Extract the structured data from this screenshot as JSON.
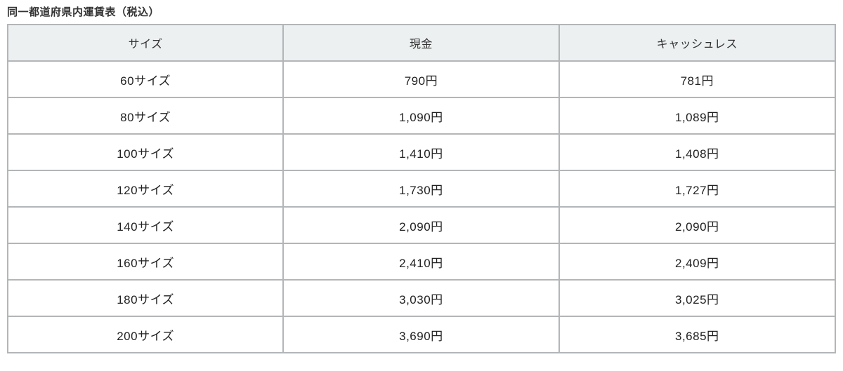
{
  "title": "同一都道府県内運賃表（税込）",
  "chart_data": {
    "type": "table",
    "columns": [
      "サイズ",
      "現金",
      "キャッシュレス"
    ],
    "rows": [
      {
        "size": "60サイズ",
        "cash": "790円",
        "cashless": "781円"
      },
      {
        "size": "80サイズ",
        "cash": "1,090円",
        "cashless": "1,089円"
      },
      {
        "size": "100サイズ",
        "cash": "1,410円",
        "cashless": "1,408円"
      },
      {
        "size": "120サイズ",
        "cash": "1,730円",
        "cashless": "1,727円"
      },
      {
        "size": "140サイズ",
        "cash": "2,090円",
        "cashless": "2,090円"
      },
      {
        "size": "160サイズ",
        "cash": "2,410円",
        "cashless": "2,409円"
      },
      {
        "size": "180サイズ",
        "cash": "3,030円",
        "cashless": "3,025円"
      },
      {
        "size": "200サイズ",
        "cash": "3,690円",
        "cashless": "3,685円"
      }
    ]
  },
  "colors": {
    "header_bg": "#edf0f1",
    "border": "#b3b6b8",
    "text": "#222222",
    "title_text": "#333333"
  }
}
